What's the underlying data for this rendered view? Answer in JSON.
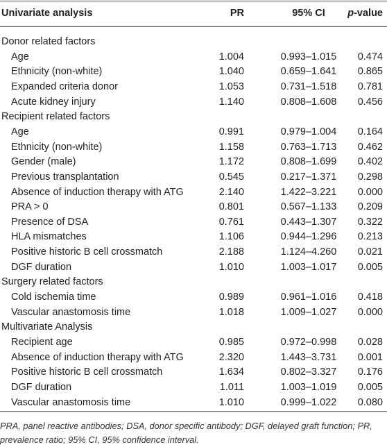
{
  "header": {
    "columns": [
      "Univariate analysis",
      "PR",
      "95% CI"
    ],
    "pvalue": {
      "italic": "p",
      "rest": "-value"
    }
  },
  "sections": [
    {
      "title": "Donor related factors",
      "rows": [
        [
          "Age",
          "1.004",
          "0.993–1.015",
          "0.474"
        ],
        [
          "Ethnicity (non-white)",
          "1.040",
          "0.659–1.641",
          "0.865"
        ],
        [
          "Expanded criteria donor",
          "1.053",
          "0.731–1.518",
          "0.781"
        ],
        [
          "Acute kidney injury",
          "1.140",
          "0.808–1.608",
          "0.456"
        ]
      ]
    },
    {
      "title": "Recipient related factors",
      "rows": [
        [
          "Age",
          "0.991",
          "0.979–1.004",
          "0.164"
        ],
        [
          "Ethnicity (non-white)",
          "1.158",
          "0.763–1.713",
          "0.462"
        ],
        [
          "Gender (male)",
          "1.172",
          "0.808–1.699",
          "0.402"
        ],
        [
          "Previous transplantation",
          "0.545",
          "0.217–1.371",
          "0.298"
        ],
        [
          "Absence of induction therapy with ATG",
          "2.140",
          "1.422–3.221",
          "0.000"
        ],
        [
          "PRA > 0",
          "0.801",
          "0.567–1.133",
          "0.209"
        ],
        [
          "Presence of DSA",
          "0.761",
          "0.443–1.307",
          "0.322"
        ],
        [
          "HLA mismatches",
          "1.106",
          "0.944–1.296",
          "0.213"
        ],
        [
          "Positive historic B cell crossmatch",
          "2.188",
          "1.124–4.260",
          "0.021"
        ],
        [
          "DGF duration",
          "1.010",
          "1.003–1.017",
          "0.005"
        ]
      ]
    },
    {
      "title": "Surgery related factors",
      "rows": [
        [
          "Cold ischemia time",
          "0.989",
          "0.961–1.016",
          "0.418"
        ],
        [
          "Vascular anastomosis time",
          "1.018",
          "1.009–1.027",
          "0.000"
        ]
      ]
    },
    {
      "title": "Multivariate Analysis",
      "rows": [
        [
          "Recipient age",
          "0.985",
          "0.972–0.998",
          "0.028"
        ],
        [
          "Absence of induction therapy with ATG",
          "2.320",
          "1.443–3.731",
          "0.001"
        ],
        [
          "Positive historic B cell crossmatch",
          "1.634",
          "0.802–3.327",
          "0.176"
        ],
        [
          "DGF duration",
          "1.011",
          "1.003–1.019",
          "0.005"
        ],
        [
          "Vascular anastomosis time",
          "1.010",
          "0.999–1.022",
          "0.080"
        ]
      ]
    }
  ],
  "footnote": "PRA, panel reactive antibodies; DSA, donor specific antibody; DGF, delayed graft function; PR, prevalence ratio; 95% CI, 95% confidence interval."
}
